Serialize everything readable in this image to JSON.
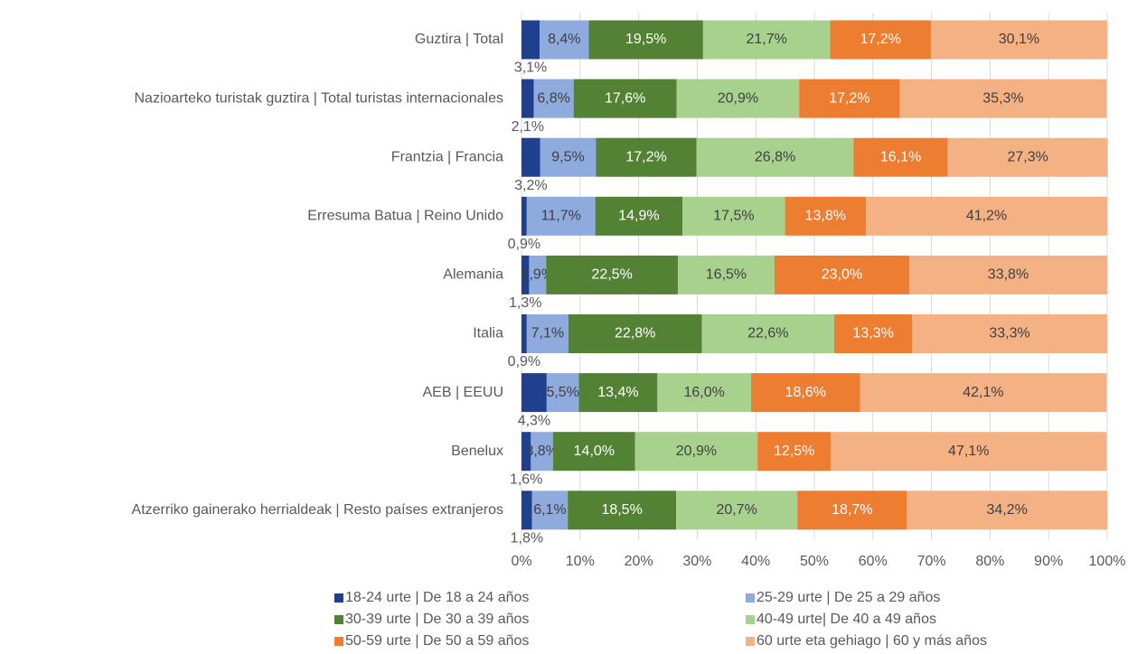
{
  "chart_data": {
    "type": "stacked_bar_horizontal",
    "categories": [
      "Guztira | Total",
      "Nazioarteko turistak guztira | Total turistas internacionales",
      "Frantzia | Francia",
      "Erresuma Batua | Reino Unido",
      "Alemania",
      "Italia",
      "AEB | EEUU",
      "Benelux",
      "Atzerriko gainerako herrialdeak | Resto países extranjeros"
    ],
    "series": [
      {
        "name": "18-24 urte | De 18 a 24 años",
        "color": "#1f3f8f",
        "label_color": "#404040",
        "values": [
          3.1,
          2.1,
          3.2,
          0.9,
          1.3,
          0.9,
          4.3,
          1.6,
          1.8
        ],
        "value_labels": [
          "3,1%",
          "2,1%",
          "3,2%",
          "0,9%",
          "1,3%",
          "0,9%",
          "4,3%",
          "1,6%",
          "1,8%"
        ]
      },
      {
        "name": "25-29 urte | De 25 a 29 años",
        "color": "#8faadc",
        "label_color": "#404040",
        "values": [
          8.4,
          6.8,
          9.5,
          11.7,
          2.9,
          7.1,
          5.5,
          3.8,
          6.1
        ],
        "value_labels": [
          "8,4%",
          "6,8%",
          "9,5%",
          "11,7%",
          "2,9%",
          "7,1%",
          "5,5%",
          "3,8%",
          "6,1%"
        ]
      },
      {
        "name": "30-39 urte | De 30 a 39 años",
        "color": "#548235",
        "label_color": "#ffffff",
        "values": [
          19.5,
          17.6,
          17.2,
          14.9,
          22.5,
          22.8,
          13.4,
          14.0,
          18.5
        ],
        "value_labels": [
          "19,5%",
          "17,6%",
          "17,2%",
          "14,9%",
          "22,5%",
          "22,8%",
          "13,4%",
          "14,0%",
          "18,5%"
        ]
      },
      {
        "name": "40-49 urte| De 40 a 49 años",
        "color": "#a9d18e",
        "label_color": "#404040",
        "values": [
          21.7,
          20.9,
          26.8,
          17.5,
          16.5,
          22.6,
          16.0,
          20.9,
          20.7
        ],
        "value_labels": [
          "21,7%",
          "20,9%",
          "26,8%",
          "17,5%",
          "16,5%",
          "22,6%",
          "16,0%",
          "20,9%",
          "20,7%"
        ]
      },
      {
        "name": "50-59 urte | De 50 a 59 años",
        "color": "#ed7d31",
        "label_color": "#ffffff",
        "values": [
          17.2,
          17.2,
          16.1,
          13.8,
          23.0,
          13.3,
          18.6,
          12.5,
          18.7
        ],
        "value_labels": [
          "17,2%",
          "17,2%",
          "16,1%",
          "13,8%",
          "23,0%",
          "13,3%",
          "18,6%",
          "12,5%",
          "18,7%"
        ]
      },
      {
        "name": "60 urte eta gehiago | 60 y más años",
        "color": "#f4b183",
        "label_color": "#404040",
        "values": [
          30.1,
          35.3,
          27.3,
          41.2,
          33.8,
          33.3,
          42.1,
          47.1,
          34.2
        ],
        "value_labels": [
          "30,1%",
          "35,3%",
          "27,3%",
          "41,2%",
          "33,8%",
          "33,3%",
          "42,1%",
          "47,1%",
          "34,2%"
        ]
      }
    ],
    "xlim": [
      0,
      100
    ],
    "xticks": [
      {
        "value": 0,
        "label": "0%"
      },
      {
        "value": 10,
        "label": "10%"
      },
      {
        "value": 20,
        "label": "20%"
      },
      {
        "value": 30,
        "label": "30%"
      },
      {
        "value": 40,
        "label": "40%"
      },
      {
        "value": 50,
        "label": "50%"
      },
      {
        "value": 60,
        "label": "60%"
      },
      {
        "value": 70,
        "label": "70%"
      },
      {
        "value": 80,
        "label": "80%"
      },
      {
        "value": 90,
        "label": "90%"
      },
      {
        "value": 100,
        "label": "100%"
      }
    ],
    "grid": true,
    "legend": "bottom"
  }
}
